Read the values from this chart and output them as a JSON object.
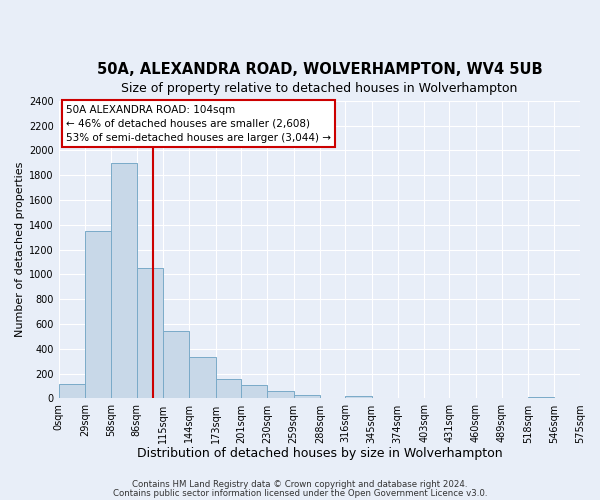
{
  "title": "50A, ALEXANDRA ROAD, WOLVERHAMPTON, WV4 5UB",
  "subtitle": "Size of property relative to detached houses in Wolverhampton",
  "xlabel": "Distribution of detached houses by size in Wolverhampton",
  "ylabel": "Number of detached properties",
  "footer_line1": "Contains HM Land Registry data © Crown copyright and database right 2024.",
  "footer_line2": "Contains public sector information licensed under the Open Government Licence v3.0.",
  "bin_edges": [
    0,
    29,
    58,
    86,
    115,
    144,
    173,
    201,
    230,
    259,
    288,
    316,
    345,
    374,
    403,
    431,
    460,
    489,
    518,
    546,
    575
  ],
  "bin_labels": [
    "0sqm",
    "29sqm",
    "58sqm",
    "86sqm",
    "115sqm",
    "144sqm",
    "173sqm",
    "201sqm",
    "230sqm",
    "259sqm",
    "288sqm",
    "316sqm",
    "345sqm",
    "374sqm",
    "403sqm",
    "431sqm",
    "460sqm",
    "489sqm",
    "518sqm",
    "546sqm",
    "575sqm"
  ],
  "bar_heights": [
    120,
    1350,
    1900,
    1050,
    540,
    335,
    160,
    105,
    60,
    30,
    0,
    20,
    0,
    0,
    0,
    0,
    0,
    0,
    15,
    0
  ],
  "bar_color": "#c8d8e8",
  "bar_edge_color": "#7aaac8",
  "property_value": 104,
  "vline_color": "#cc0000",
  "annotation_text": "50A ALEXANDRA ROAD: 104sqm\n← 46% of detached houses are smaller (2,608)\n53% of semi-detached houses are larger (3,044) →",
  "annotation_box_color": "#ffffff",
  "annotation_box_edge_color": "#cc0000",
  "ylim": [
    0,
    2400
  ],
  "yticks": [
    0,
    200,
    400,
    600,
    800,
    1000,
    1200,
    1400,
    1600,
    1800,
    2000,
    2200,
    2400
  ],
  "bg_color": "#e8eef8",
  "grid_color": "#ffffff",
  "title_fontsize": 10.5,
  "subtitle_fontsize": 9,
  "xlabel_fontsize": 9,
  "ylabel_fontsize": 8,
  "tick_fontsize": 7,
  "annotation_fontsize": 7.5,
  "footer_fontsize": 6.2
}
